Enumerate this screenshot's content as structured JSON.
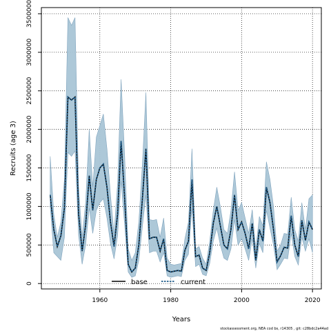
{
  "chart_data": {
    "type": "line",
    "xlabel": "Years",
    "ylabel": "Recruits (age 3)",
    "xlim": [
      1943.5,
      2022.5
    ],
    "ylim": [
      -70000,
      3580000
    ],
    "x_ticks": [
      1960,
      1980,
      2000,
      2020
    ],
    "y_ticks": [
      0,
      500000,
      1000000,
      1500000,
      2000000,
      2500000,
      3000000,
      3500000
    ],
    "x_tick_labels": [
      "1960",
      "1980",
      "2000",
      "2020"
    ],
    "y_tick_labels": [
      "0",
      "500000",
      "1000000",
      "1500000",
      "2000000",
      "2500000",
      "3000000",
      "3500000"
    ],
    "grid": true,
    "legend": {
      "position": "bottom-center",
      "entries": [
        "base",
        "current"
      ]
    },
    "band_color": "#a9c5d6",
    "band_edge_color": "#7fa3bd",
    "x": [
      1946,
      1947,
      1948,
      1949,
      1950,
      1951,
      1952,
      1953,
      1954,
      1955,
      1956,
      1957,
      1958,
      1959,
      1960,
      1961,
      1962,
      1963,
      1964,
      1965,
      1966,
      1967,
      1968,
      1969,
      1970,
      1971,
      1972,
      1973,
      1974,
      1975,
      1976,
      1977,
      1978,
      1979,
      1980,
      1981,
      1982,
      1983,
      1984,
      1985,
      1986,
      1987,
      1988,
      1989,
      1990,
      1991,
      1992,
      1993,
      1994,
      1995,
      1996,
      1997,
      1998,
      1999,
      2000,
      2001,
      2002,
      2003,
      2004,
      2005,
      2006,
      2007,
      2008,
      2009,
      2010,
      2011,
      2012,
      2013,
      2014,
      2015,
      2016,
      2017,
      2018,
      2019,
      2020
    ],
    "series": [
      {
        "name": "base",
        "values": [
          1150000,
          700000,
          480000,
          620000,
          980000,
          2420000,
          2380000,
          2420000,
          900000,
          420000,
          760000,
          1400000,
          950000,
          1350000,
          1500000,
          1550000,
          1250000,
          800000,
          480000,
          900000,
          1850000,
          1100000,
          250000,
          150000,
          200000,
          500000,
          1100000,
          1750000,
          580000,
          600000,
          600000,
          420000,
          580000,
          170000,
          150000,
          160000,
          170000,
          160000,
          430000,
          550000,
          1350000,
          350000,
          370000,
          200000,
          170000,
          400000,
          780000,
          1000000,
          750000,
          500000,
          450000,
          700000,
          1150000,
          700000,
          800000,
          650000,
          450000,
          780000,
          300000,
          700000,
          550000,
          1250000,
          1050000,
          700000,
          280000,
          360000,
          470000,
          460000,
          880000,
          500000,
          350000,
          820000,
          560000,
          800000,
          700000
        ]
      },
      {
        "name": "current",
        "values": [
          1150000,
          700000,
          480000,
          620000,
          980000,
          2420000,
          2380000,
          2420000,
          900000,
          420000,
          760000,
          1400000,
          950000,
          1350000,
          1500000,
          1550000,
          1250000,
          800000,
          480000,
          900000,
          1850000,
          1100000,
          250000,
          150000,
          200000,
          500000,
          1100000,
          1750000,
          580000,
          600000,
          600000,
          420000,
          580000,
          170000,
          150000,
          160000,
          170000,
          160000,
          430000,
          550000,
          1350000,
          350000,
          370000,
          200000,
          170000,
          400000,
          780000,
          1000000,
          750000,
          500000,
          450000,
          700000,
          1150000,
          700000,
          800000,
          650000,
          450000,
          780000,
          300000,
          700000,
          550000,
          1250000,
          1050000,
          700000,
          280000,
          360000,
          470000,
          460000,
          880000,
          500000,
          350000,
          820000,
          560000,
          800000,
          700000
        ]
      }
    ],
    "band_upper": [
      1650000,
      900000,
      600000,
      800000,
      1350000,
      3450000,
      3350000,
      3450000,
      1250000,
      600000,
      1050000,
      2000000,
      1250000,
      1900000,
      2050000,
      2200000,
      1750000,
      1150000,
      650000,
      1300000,
      2650000,
      1650000,
      450000,
      300000,
      400000,
      800000,
      1550000,
      2480000,
      830000,
      820000,
      830000,
      600000,
      850000,
      330000,
      250000,
      240000,
      250000,
      260000,
      580000,
      800000,
      1750000,
      450000,
      480000,
      330000,
      250000,
      550000,
      950000,
      1250000,
      1000000,
      700000,
      650000,
      950000,
      1450000,
      950000,
      1050000,
      850000,
      650000,
      960000,
      450000,
      870000,
      750000,
      1580000,
      1350000,
      1000000,
      420000,
      500000,
      650000,
      640000,
      1120000,
      700000,
      550000,
      1050000,
      700000,
      1100000,
      1150000
    ],
    "band_lower": [
      1000000,
      400000,
      350000,
      300000,
      600000,
      1700000,
      1650000,
      1720000,
      620000,
      250000,
      500000,
      980000,
      650000,
      950000,
      1050000,
      1100000,
      850000,
      520000,
      320000,
      620000,
      1330000,
      750000,
      150000,
      80000,
      100000,
      300000,
      740000,
      1150000,
      400000,
      420000,
      420000,
      280000,
      400000,
      100000,
      80000,
      90000,
      100000,
      90000,
      300000,
      380000,
      980000,
      220000,
      250000,
      120000,
      100000,
      260000,
      550000,
      720000,
      500000,
      330000,
      300000,
      450000,
      830000,
      500000,
      580000,
      450000,
      300000,
      580000,
      200000,
      520000,
      400000,
      950000,
      720000,
      500000,
      180000,
      250000,
      330000,
      320000,
      650000,
      350000,
      240000,
      600000,
      420000,
      580000,
      400000
    ]
  },
  "footer_text": "stockassessment.org, NEA cod bs, r14305 , git: c28bdc2a44ad"
}
